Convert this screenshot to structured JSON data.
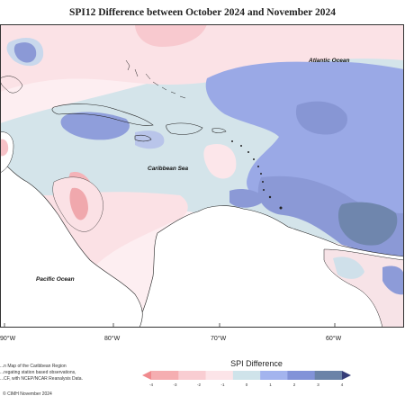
{
  "title": "SPI12 Difference between October 2024 and November 2024",
  "labels": {
    "atlantic": "Atlantic Ocean",
    "caribbean": "Caribbean Sea",
    "pacific": "Pacific Ocean"
  },
  "lon_ticks": [
    "90°W",
    "80°W",
    "70°W",
    "60°W"
  ],
  "notes": [
    "...n Map of the Caribbean Region",
    "...regating station based observations,",
    "...CF, with NCEP/NCAR Reanalysis Data."
  ],
  "credit": "© CIMH November 2024",
  "colorbar": {
    "title": "SPI Difference",
    "ticks": [
      "-4",
      "-3",
      "-2",
      "-1",
      "0",
      "1",
      "2",
      "3",
      "4"
    ],
    "colors": [
      "#f08a8e",
      "#f5aeb1",
      "#f9cdd2",
      "#fce4e8",
      "#cfe3ea",
      "#a3b4ee",
      "#8293d8",
      "#6b83a8",
      "#353d78"
    ]
  }
}
